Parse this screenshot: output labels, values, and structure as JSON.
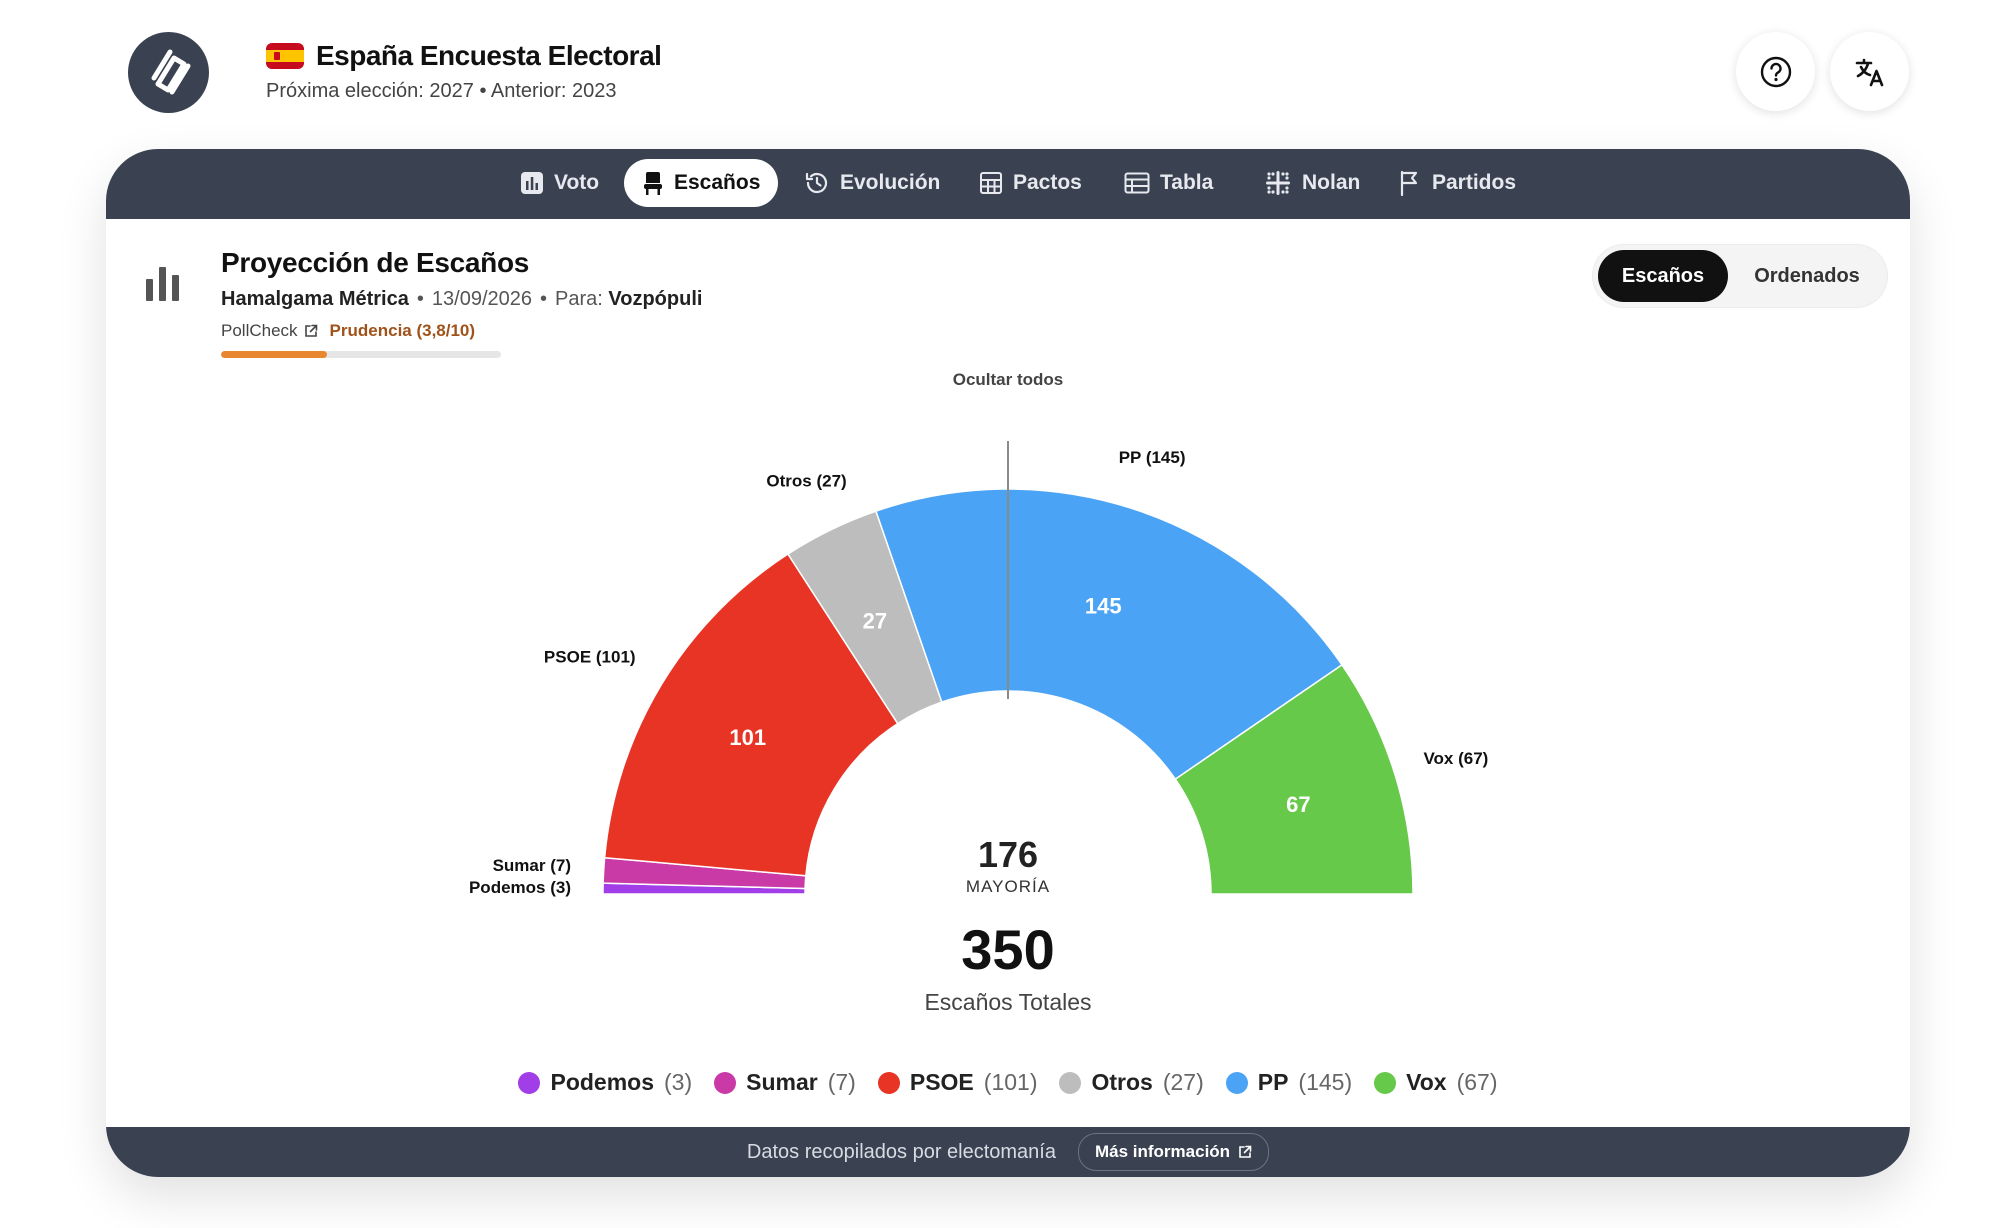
{
  "header": {
    "title": "España Encuesta Electoral",
    "subtitle": "Próxima elección: 2027 • Anterior: 2023",
    "help_icon": "help-circle-icon",
    "translate_icon": "translate-icon"
  },
  "nav": {
    "tabs": [
      {
        "label": "Voto",
        "icon": "bar-chart-icon",
        "active": false
      },
      {
        "label": "Escaños",
        "icon": "seat-icon",
        "active": true
      },
      {
        "label": "Evolución",
        "icon": "history-icon",
        "active": false
      },
      {
        "label": "Pactos",
        "icon": "calculator-icon",
        "active": false
      },
      {
        "label": "Tabla",
        "icon": "table-icon",
        "active": false
      },
      {
        "label": "Nolan",
        "icon": "grid-sparkle-icon",
        "active": false
      },
      {
        "label": "Partidos",
        "icon": "flag-icon",
        "active": false
      }
    ]
  },
  "content": {
    "title": "Proyección de Escaños",
    "pollster": "Hamalgama Métrica",
    "date": "13/09/2026",
    "for_label": "Para:",
    "client": "Vozpópuli",
    "pollcheck_label": "PollCheck",
    "prudencia_label": "Prudencia (3,8/10)",
    "prudencia_score": 0.38,
    "toggle": {
      "active": "Escaños",
      "inactive": "Ordenados"
    },
    "hide_all_label": "Ocultar todos"
  },
  "chart_data": {
    "type": "pie",
    "variant": "hemicycle",
    "total_seats": 350,
    "total_label": "Escaños Totales",
    "majority": 176,
    "majority_label": "MAYORÍA",
    "series": [
      {
        "name": "Podemos",
        "value": 3,
        "color": "#a23ee8",
        "label": "Podemos (3)"
      },
      {
        "name": "Sumar",
        "value": 7,
        "color": "#c93aa7",
        "label": "Sumar (7)"
      },
      {
        "name": "PSOE",
        "value": 101,
        "color": "#e83425",
        "label": "PSOE (101)"
      },
      {
        "name": "Otros",
        "value": 27,
        "color": "#bdbdbd",
        "label": "Otros (27)"
      },
      {
        "name": "PP",
        "value": 145,
        "color": "#4aa3f5",
        "label": "PP (145)"
      },
      {
        "name": "Vox",
        "value": 67,
        "color": "#66c94a",
        "label": "Vox (67)"
      }
    ],
    "legend_position": "bottom"
  },
  "footer": {
    "credit": "Datos recopilados por electomanía",
    "more_label": "Más información"
  }
}
